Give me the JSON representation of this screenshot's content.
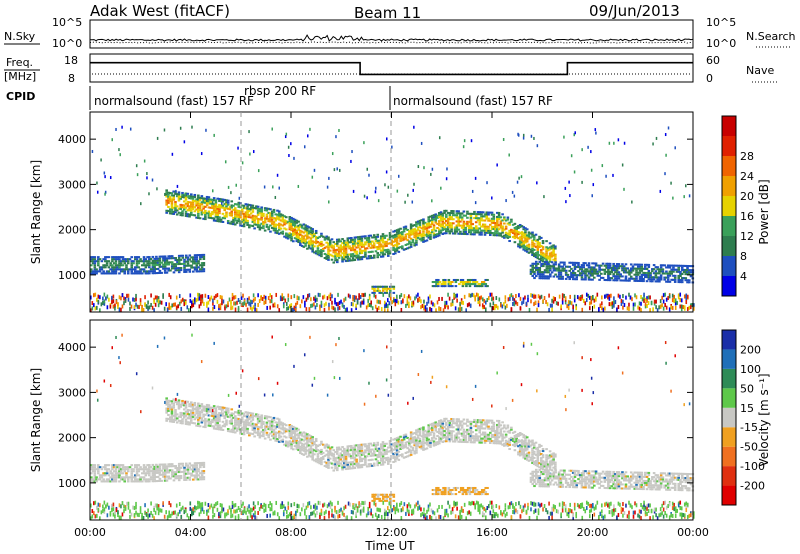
{
  "header": {
    "site": "Adak West (fitACF)",
    "beam": "Beam 11",
    "date": "09/Jun/2013"
  },
  "noise_panel": {
    "left_label": "N.Sky",
    "right_label": "N.Search",
    "ticks_left": [
      "10^5",
      "10^0"
    ],
    "ticks_right": [
      "10^5",
      "10^0"
    ]
  },
  "freq_panel": {
    "left_label_1": "Freq.",
    "left_label_2": "[MHz]",
    "left_ticks": [
      "18",
      "8"
    ],
    "right_label": "Nave",
    "right_ticks": [
      "60",
      "0"
    ],
    "freq_steps": [
      {
        "t0": 0,
        "t1": 10.75,
        "mhz": 16.5
      },
      {
        "t0": 10.75,
        "t1": 19.0,
        "mhz": 10.0
      },
      {
        "t0": 19.0,
        "t1": 24.0,
        "mhz": 16.5
      }
    ],
    "nave_level": 8
  },
  "cpid": {
    "label": "CPID",
    "segments": [
      {
        "text": "normalsound (fast) 157 RF",
        "t_start": 0
      },
      {
        "text": "rbsp 200 RF",
        "t_start": 6.0
      },
      {
        "text": "normalsound (fast) 157 RF",
        "t_start": 12.0
      }
    ]
  },
  "time_axis": {
    "label": "Time UT",
    "ticks": [
      "00:00",
      "04:00",
      "08:00",
      "12:00",
      "16:00",
      "20:00",
      "00:00"
    ],
    "range_hours": [
      0,
      24
    ]
  },
  "range_axis": {
    "label": "Slant Range [km]",
    "ticks": [
      "1000",
      "2000",
      "3000",
      "4000"
    ],
    "range_km": [
      180,
      4600
    ]
  },
  "power_scale": {
    "label": "Power [dB]",
    "ticks": [
      "4",
      "8",
      "12",
      "16",
      "20",
      "24",
      "28"
    ],
    "colors": [
      "#0000e6",
      "#1e4fbf",
      "#2e7d4f",
      "#3aa05a",
      "#e6d200",
      "#f0a000",
      "#f06400",
      "#e02000",
      "#c80000"
    ]
  },
  "velocity_scale": {
    "label": "Velocity [m s⁻¹]",
    "ticks": [
      "200",
      "100",
      "50",
      "15",
      "-15",
      "-50",
      "-100",
      "-200"
    ],
    "colors": [
      "#1a2ea8",
      "#1f6fb8",
      "#2e8b57",
      "#5ec84a",
      "#c8c8c4",
      "#f0a020",
      "#f07020",
      "#e03010",
      "#e00000"
    ]
  },
  "chart_data": {
    "type": "heatmap",
    "panels": [
      "Power [dB]",
      "Velocity [m s⁻¹]"
    ],
    "x_range_hours": [
      0,
      24
    ],
    "y_range_km": [
      180,
      4600
    ],
    "features": [
      {
        "name": "main F-region band",
        "t_start": 3.0,
        "t_end": 18.5,
        "range_km_center": [
          2600,
          2400,
          2150,
          1500,
          1650,
          2150,
          2100,
          1350
        ],
        "power_db": 22
      },
      {
        "name": "near-range band",
        "t_start": 0,
        "t_end": 4.5,
        "range_km_center": [
          1200,
          1200,
          1250
        ],
        "power_db": 10
      },
      {
        "name": "late near-range band",
        "t_start": 17.5,
        "t_end": 24,
        "range_km_center": [
          1100,
          1050,
          1000
        ],
        "power_db": 8
      },
      {
        "name": "E-region patch",
        "t_start": 11.2,
        "t_end": 12.1,
        "range_km_center": [
          650
        ],
        "power_db": 22
      },
      {
        "name": "mid patch",
        "t_start": 13.6,
        "t_end": 15.8,
        "range_km_center": [
          800
        ],
        "power_db": 20
      }
    ]
  }
}
